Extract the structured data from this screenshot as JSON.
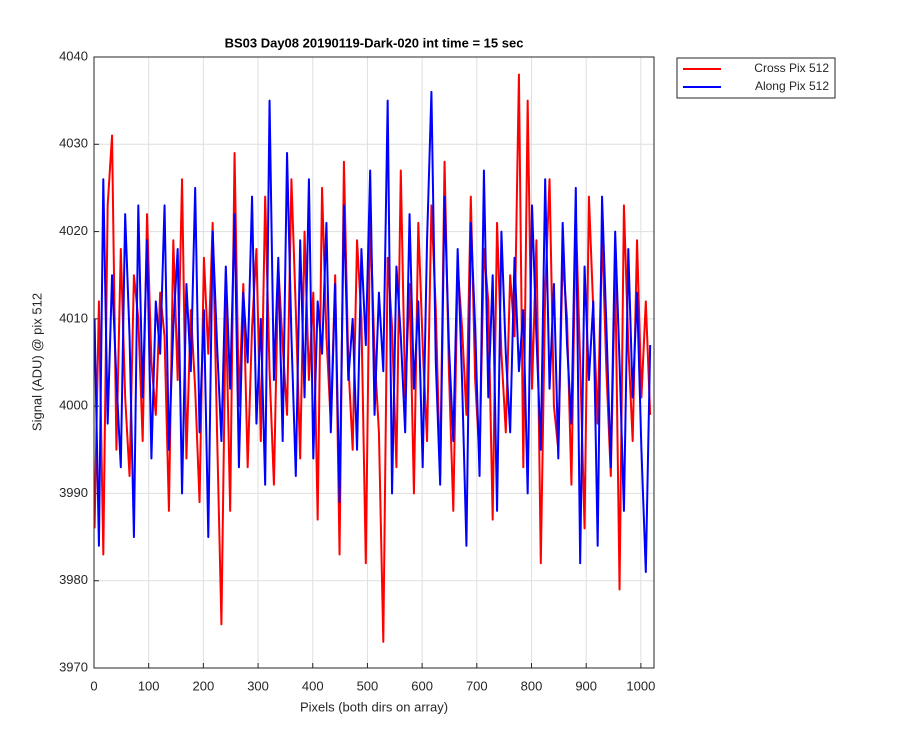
{
  "chart_data": {
    "type": "line",
    "title": "BS03 Day08 20190119-Dark-020 int time = 15 sec",
    "x_label": "Pixels (both dirs on array)",
    "y_label": "Signal (ADU) @ pix 512",
    "x": [
      1,
      9,
      17,
      25,
      33,
      41,
      49,
      57,
      65,
      73,
      81,
      89,
      97,
      105,
      113,
      121,
      129,
      137,
      145,
      153,
      161,
      169,
      177,
      185,
      193,
      201,
      209,
      217,
      225,
      233,
      241,
      249,
      257,
      265,
      273,
      281,
      289,
      297,
      305,
      313,
      321,
      329,
      337,
      345,
      353,
      361,
      369,
      377,
      385,
      393,
      401,
      409,
      417,
      425,
      433,
      441,
      449,
      457,
      465,
      473,
      481,
      489,
      497,
      505,
      513,
      521,
      529,
      537,
      545,
      553,
      561,
      569,
      577,
      585,
      593,
      601,
      609,
      617,
      625,
      633,
      641,
      649,
      657,
      665,
      673,
      681,
      689,
      697,
      705,
      713,
      721,
      729,
      737,
      745,
      753,
      761,
      769,
      777,
      785,
      793,
      801,
      809,
      817,
      825,
      833,
      841,
      849,
      857,
      865,
      873,
      881,
      889,
      897,
      905,
      913,
      921,
      929,
      937,
      945,
      953,
      961,
      969,
      977,
      985,
      993,
      1001,
      1009,
      1017
    ],
    "series": [
      {
        "name": "Cross Pix 512",
        "color": "#ff0000",
        "values": [
          3986,
          4012,
          3983,
          4023,
          4031,
          3995,
          4018,
          4001,
          3992,
          4015,
          4010,
          3996,
          4022,
          4005,
          3999,
          4013,
          4008,
          3988,
          4019,
          4003,
          4026,
          3994,
          4011,
          4002,
          3989,
          4017,
          4006,
          4021,
          3997,
          3975,
          4012,
          3988,
          4029,
          4000,
          4014,
          3993,
          4009,
          4018,
          3996,
          4024,
          4004,
          3991,
          4016,
          4007,
          3999,
          4026,
          4011,
          3994,
          4020,
          4003,
          4013,
          3987,
          4025,
          4008,
          3998,
          4015,
          3983,
          4028,
          4005,
          3995,
          4019,
          4010,
          3982,
          4022,
          4006,
          3997,
          3973,
          4017,
          4009,
          3993,
          4027,
          4001,
          4014,
          3990,
          4021,
          4007,
          3996,
          4023,
          4011,
          3992,
          4028,
          4004,
          3988,
          4016,
          4009,
          3999,
          4024,
          4003,
          3994,
          4018,
          4012,
          3987,
          4021,
          4006,
          3997,
          4015,
          4008,
          4038,
          3993,
          4035,
          4002,
          4019,
          3982,
          4013,
          4026,
          4000,
          3995,
          4017,
          4010,
          3991,
          4022,
          4005,
          3986,
          4024,
          4011,
          3998,
          4020,
          4004,
          3992,
          4016,
          3979,
          4023,
          4007,
          3996,
          4019,
          4001,
          4012,
          3999
        ]
      },
      {
        "name": "Along Pix 512",
        "color": "#0000ff",
        "values": [
          4010,
          3984,
          4026,
          3998,
          4015,
          4003,
          3993,
          4022,
          4008,
          3985,
          4023,
          4001,
          4019,
          3994,
          4012,
          4006,
          4023,
          3995,
          4009,
          4018,
          3990,
          4014,
          4004,
          4025,
          3997,
          4011,
          3985,
          4020,
          4007,
          3996,
          4016,
          4002,
          4022,
          3993,
          4013,
          4005,
          4024,
          3998,
          4010,
          3991,
          4035,
          4003,
          4017,
          3996,
          4029,
          4008,
          3992,
          4019,
          4001,
          4026,
          3994,
          4012,
          4006,
          4021,
          3997,
          4014,
          3989,
          4023,
          4003,
          4010,
          3995,
          4018,
          4007,
          4027,
          3999,
          4013,
          4004,
          4035,
          3990,
          4016,
          4008,
          3997,
          4022,
          4002,
          4012,
          3993,
          4019,
          4036,
          4005,
          3991,
          4024,
          4007,
          3996,
          4018,
          4003,
          3984,
          4021,
          4009,
          3992,
          4027,
          4001,
          4015,
          3988,
          4020,
          4006,
          3997,
          4017,
          4004,
          4011,
          3990,
          4023,
          4008,
          3995,
          4026,
          4002,
          4014,
          3994,
          4021,
          4007,
          3998,
          4025,
          3982,
          4016,
          4003,
          4012,
          3984,
          4024,
          4009,
          3993,
          4020,
          4005,
          3988,
          4018,
          4001,
          4013,
          3995,
          3981,
          4007
        ]
      }
    ],
    "xlim": [
      0,
      1024
    ],
    "xticks": [
      0,
      100,
      200,
      300,
      400,
      500,
      600,
      700,
      800,
      900,
      1000
    ],
    "ylim": [
      3970,
      4040
    ],
    "yticks": [
      3970,
      3980,
      3990,
      4000,
      4010,
      4020,
      4030,
      4040
    ],
    "grid": true,
    "legend": "northeastoutside"
  }
}
